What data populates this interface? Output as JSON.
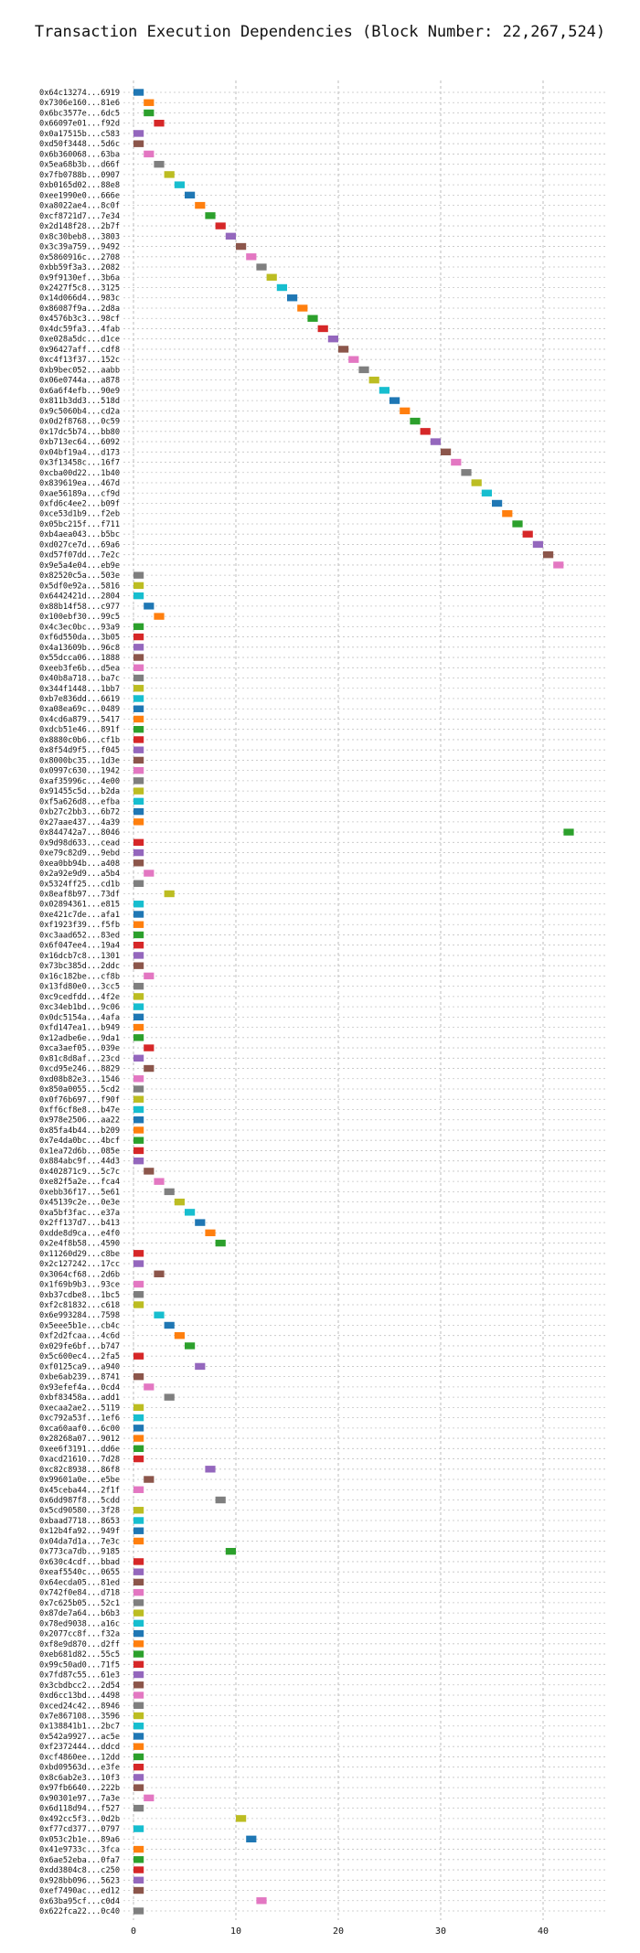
{
  "chart_data": {
    "type": "gantt",
    "title": "Transaction Execution Dependencies (Block Number: 22,267,524)",
    "xlabel": "",
    "ylabel": "",
    "x_ticks": [
      0,
      10,
      20,
      30,
      40
    ],
    "xlim": [
      -1.5,
      45
    ],
    "grid": true,
    "palette": [
      "#1f77b4",
      "#ff7f0e",
      "#2ca02c",
      "#d62728",
      "#9467bd",
      "#8c564b",
      "#e377c2",
      "#7f7f7f",
      "#bcbd22",
      "#17becf"
    ],
    "transactions": [
      {
        "hash": "0x64c13274...6919",
        "start": 0
      },
      {
        "hash": "0x7306e160...81e6",
        "start": 1
      },
      {
        "hash": "0x6bc3577e...6dc5",
        "start": 1
      },
      {
        "hash": "0x66097e01...f92d",
        "start": 2
      },
      {
        "hash": "0x0a17515b...c583",
        "start": 0
      },
      {
        "hash": "0xd50f3448...5d6c",
        "start": 0
      },
      {
        "hash": "0x6b360068...63ba",
        "start": 1
      },
      {
        "hash": "0x5ea68b3b...d66f",
        "start": 2
      },
      {
        "hash": "0x7fb0788b...0907",
        "start": 3
      },
      {
        "hash": "0xb0165d02...88e8",
        "start": 4
      },
      {
        "hash": "0xee1990e0...666e",
        "start": 5
      },
      {
        "hash": "0xa8022ae4...8c0f",
        "start": 6
      },
      {
        "hash": "0xcf8721d7...7e34",
        "start": 7
      },
      {
        "hash": "0x2d148f28...2b7f",
        "start": 8
      },
      {
        "hash": "0x8c30beb8...3803",
        "start": 9
      },
      {
        "hash": "0x3c39a759...9492",
        "start": 10
      },
      {
        "hash": "0x5860916c...2708",
        "start": 11
      },
      {
        "hash": "0xbb59f3a3...2082",
        "start": 12
      },
      {
        "hash": "0x9f9130ef...3b6a",
        "start": 13
      },
      {
        "hash": "0x2427f5c8...3125",
        "start": 14
      },
      {
        "hash": "0x14d066d4...983c",
        "start": 15
      },
      {
        "hash": "0x86087f9a...2d8a",
        "start": 16
      },
      {
        "hash": "0x4576b3c3...98cf",
        "start": 17
      },
      {
        "hash": "0x4dc59fa3...4fab",
        "start": 18
      },
      {
        "hash": "0xe028a5dc...d1ce",
        "start": 19
      },
      {
        "hash": "0x96427aff...cdf8",
        "start": 20
      },
      {
        "hash": "0xc4f13f37...152c",
        "start": 21
      },
      {
        "hash": "0xb9bec052...aabb",
        "start": 22
      },
      {
        "hash": "0x06e0744a...a878",
        "start": 23
      },
      {
        "hash": "0x6a6f4efb...90e9",
        "start": 24
      },
      {
        "hash": "0x811b3dd3...518d",
        "start": 25
      },
      {
        "hash": "0x9c5060b4...cd2a",
        "start": 26
      },
      {
        "hash": "0x0d2f8768...0c59",
        "start": 27
      },
      {
        "hash": "0x17dc5b74...bb80",
        "start": 28
      },
      {
        "hash": "0xb713ec64...6092",
        "start": 29
      },
      {
        "hash": "0x04bf19a4...d173",
        "start": 30
      },
      {
        "hash": "0x3f13458c...16f7",
        "start": 31
      },
      {
        "hash": "0xcba00d22...1b40",
        "start": 32
      },
      {
        "hash": "0x839619ea...467d",
        "start": 33
      },
      {
        "hash": "0xae56189a...cf9d",
        "start": 34
      },
      {
        "hash": "0xfd6c4ee2...b09f",
        "start": 35
      },
      {
        "hash": "0xce53d1b9...f2eb",
        "start": 36
      },
      {
        "hash": "0x05bc215f...f711",
        "start": 37
      },
      {
        "hash": "0xb4aea043...b5bc",
        "start": 38
      },
      {
        "hash": "0xd027ce7d...69a6",
        "start": 39
      },
      {
        "hash": "0xd57f07dd...7e2c",
        "start": 40
      },
      {
        "hash": "0x9e5a4e04...eb9e",
        "start": 41
      },
      {
        "hash": "0x82520c5a...503e",
        "start": 0
      },
      {
        "hash": "0x5df0e92a...5816",
        "start": 0
      },
      {
        "hash": "0x6442421d...2804",
        "start": 0
      },
      {
        "hash": "0x88b14f58...c977",
        "start": 1
      },
      {
        "hash": "0x100ebf30...99c5",
        "start": 2
      },
      {
        "hash": "0x4c3ec0bc...93a9",
        "start": 0
      },
      {
        "hash": "0xf6d550da...3b05",
        "start": 0
      },
      {
        "hash": "0x4a13609b...96c8",
        "start": 0
      },
      {
        "hash": "0x55dcca06...1888",
        "start": 0
      },
      {
        "hash": "0xeeb3fe6b...d5ea",
        "start": 0
      },
      {
        "hash": "0x40b8a718...ba7c",
        "start": 0
      },
      {
        "hash": "0x344f1448...1bb7",
        "start": 0
      },
      {
        "hash": "0xb7e836dd...6619",
        "start": 0
      },
      {
        "hash": "0xa08ea69c...0489",
        "start": 0
      },
      {
        "hash": "0x4cd6a879...5417",
        "start": 0
      },
      {
        "hash": "0xdcb51e46...891f",
        "start": 0
      },
      {
        "hash": "0x8880c0b6...cf1b",
        "start": 0
      },
      {
        "hash": "0x8f54d9f5...f045",
        "start": 0
      },
      {
        "hash": "0x8000bc35...1d3e",
        "start": 0
      },
      {
        "hash": "0x0997c630...1942",
        "start": 0
      },
      {
        "hash": "0xaf35996c...4e00",
        "start": 0
      },
      {
        "hash": "0x91455c5d...b2da",
        "start": 0
      },
      {
        "hash": "0xf5a626d8...efba",
        "start": 0
      },
      {
        "hash": "0xb27c2bb3...6b72",
        "start": 0
      },
      {
        "hash": "0x27aae437...4a39",
        "start": 0
      },
      {
        "hash": "0x844742a7...8046",
        "start": 42
      },
      {
        "hash": "0x9d98d633...cead",
        "start": 0
      },
      {
        "hash": "0xe79c82d9...9ebd",
        "start": 0
      },
      {
        "hash": "0xea0bb94b...a408",
        "start": 0
      },
      {
        "hash": "0x2a92e9d9...a5b4",
        "start": 1
      },
      {
        "hash": "0x5324ff25...cd1b",
        "start": 0
      },
      {
        "hash": "0x8eaf8b97...73df",
        "start": 3
      },
      {
        "hash": "0x02894361...e815",
        "start": 0
      },
      {
        "hash": "0xe421c7de...afa1",
        "start": 0
      },
      {
        "hash": "0xf1923f39...f5fb",
        "start": 0
      },
      {
        "hash": "0xc3aad652...83ed",
        "start": 0
      },
      {
        "hash": "0x6f047ee4...19a4",
        "start": 0
      },
      {
        "hash": "0x16dcb7c8...1301",
        "start": 0
      },
      {
        "hash": "0x73bc385d...2ddc",
        "start": 0
      },
      {
        "hash": "0x16c182be...cf8b",
        "start": 1
      },
      {
        "hash": "0x13fd80e0...3cc5",
        "start": 0
      },
      {
        "hash": "0xc9cedfdd...4f2e",
        "start": 0
      },
      {
        "hash": "0xc34eb1bd...9c06",
        "start": 0
      },
      {
        "hash": "0x0dc5154a...4afa",
        "start": 0
      },
      {
        "hash": "0xfd147ea1...b949",
        "start": 0
      },
      {
        "hash": "0x12adbe6e...9da1",
        "start": 0
      },
      {
        "hash": "0xca3aef05...039e",
        "start": 1
      },
      {
        "hash": "0x81c8d8af...23cd",
        "start": 0
      },
      {
        "hash": "0xcd95e246...8829",
        "start": 1
      },
      {
        "hash": "0xd08b82e3...1546",
        "start": 0
      },
      {
        "hash": "0x850a0055...5cd2",
        "start": 0
      },
      {
        "hash": "0x0f76b697...f90f",
        "start": 0
      },
      {
        "hash": "0xff6cf8e8...b47e",
        "start": 0
      },
      {
        "hash": "0x978e2506...aa22",
        "start": 0
      },
      {
        "hash": "0x85fa4b44...b209",
        "start": 0
      },
      {
        "hash": "0x7e4da0bc...4bcf",
        "start": 0
      },
      {
        "hash": "0x1ea72d6b...085e",
        "start": 0
      },
      {
        "hash": "0x884abc9f...44d3",
        "start": 0
      },
      {
        "hash": "0x402871c9...5c7c",
        "start": 1
      },
      {
        "hash": "0xe82f5a2e...fca4",
        "start": 2
      },
      {
        "hash": "0xebb36f17...5e61",
        "start": 3
      },
      {
        "hash": "0x45139c2e...0e3e",
        "start": 4
      },
      {
        "hash": "0xa5bf3fac...e37a",
        "start": 5
      },
      {
        "hash": "0x2ff137d7...b413",
        "start": 6
      },
      {
        "hash": "0xdde8d9ca...e4f0",
        "start": 7
      },
      {
        "hash": "0x2e4f8b58...4590",
        "start": 8
      },
      {
        "hash": "0x11260d29...c8be",
        "start": 0
      },
      {
        "hash": "0x2c127242...17cc",
        "start": 0
      },
      {
        "hash": "0x3064cf68...2d6b",
        "start": 2
      },
      {
        "hash": "0x1f69b9b3...93ce",
        "start": 0
      },
      {
        "hash": "0xb37cdbe8...1bc5",
        "start": 0
      },
      {
        "hash": "0xf2c81832...c618",
        "start": 0
      },
      {
        "hash": "0x6e993284...7598",
        "start": 2
      },
      {
        "hash": "0x5eee5b1e...cb4c",
        "start": 3
      },
      {
        "hash": "0xf2d2fcaa...4c6d",
        "start": 4
      },
      {
        "hash": "0x029fe6bf...b747",
        "start": 5
      },
      {
        "hash": "0x5c600ec4...2fa5",
        "start": 0
      },
      {
        "hash": "0xf0125ca9...a940",
        "start": 6
      },
      {
        "hash": "0xbe6ab239...8741",
        "start": 0
      },
      {
        "hash": "0x93efef4a...0cd4",
        "start": 1
      },
      {
        "hash": "0xbf83458a...add1",
        "start": 3
      },
      {
        "hash": "0xecaa2ae2...5119",
        "start": 0
      },
      {
        "hash": "0xc792a53f...1ef6",
        "start": 0
      },
      {
        "hash": "0xca60aaf0...6c00",
        "start": 0
      },
      {
        "hash": "0x28268a07...9012",
        "start": 0
      },
      {
        "hash": "0xee6f3191...dd6e",
        "start": 0
      },
      {
        "hash": "0xacd21610...7d28",
        "start": 0
      },
      {
        "hash": "0xc82c8938...86f8",
        "start": 7
      },
      {
        "hash": "0x99601a0e...e5be",
        "start": 1
      },
      {
        "hash": "0x45ceba44...2f1f",
        "start": 0
      },
      {
        "hash": "0x6dd987f8...5cdd",
        "start": 8
      },
      {
        "hash": "0x5cd90580...3f28",
        "start": 0
      },
      {
        "hash": "0xbaad7718...8653",
        "start": 0
      },
      {
        "hash": "0x12b4fa92...949f",
        "start": 0
      },
      {
        "hash": "0x04da7d1a...7e3c",
        "start": 0
      },
      {
        "hash": "0x773ca7db...9185",
        "start": 9
      },
      {
        "hash": "0x630c4cdf...bbad",
        "start": 0
      },
      {
        "hash": "0xeaf5540c...0655",
        "start": 0
      },
      {
        "hash": "0x64ecda05...81ed",
        "start": 0
      },
      {
        "hash": "0x742f0e84...d718",
        "start": 0
      },
      {
        "hash": "0x7c625b05...52c1",
        "start": 0
      },
      {
        "hash": "0x87de7a64...b6b3",
        "start": 0
      },
      {
        "hash": "0x78ed9038...a16c",
        "start": 0
      },
      {
        "hash": "0x2077cc8f...f32a",
        "start": 0
      },
      {
        "hash": "0xf8e9d870...d2ff",
        "start": 0
      },
      {
        "hash": "0xeb681d82...55c5",
        "start": 0
      },
      {
        "hash": "0x99c50ad0...71f5",
        "start": 0
      },
      {
        "hash": "0x7fd87c55...61e3",
        "start": 0
      },
      {
        "hash": "0x3cbdbcc2...2d54",
        "start": 0
      },
      {
        "hash": "0xd6cc13bd...4498",
        "start": 0
      },
      {
        "hash": "0xced24c42...8946",
        "start": 0
      },
      {
        "hash": "0x7e867108...3596",
        "start": 0
      },
      {
        "hash": "0x138841b1...2bc7",
        "start": 0
      },
      {
        "hash": "0x542a9927...ac5e",
        "start": 0
      },
      {
        "hash": "0xf2372444...ddcd",
        "start": 0
      },
      {
        "hash": "0xcf4860ee...12dd",
        "start": 0
      },
      {
        "hash": "0xbd09563d...e3fe",
        "start": 0
      },
      {
        "hash": "0x8c6ab2e3...10f3",
        "start": 0
      },
      {
        "hash": "0x97fb6640...222b",
        "start": 0
      },
      {
        "hash": "0x90301e97...7a3e",
        "start": 1
      },
      {
        "hash": "0x6d118d94...f527",
        "start": 0
      },
      {
        "hash": "0x492cc5f3...0d2b",
        "start": 10
      },
      {
        "hash": "0xf77cd377...0797",
        "start": 0
      },
      {
        "hash": "0x053c2b1e...89a6",
        "start": 11
      },
      {
        "hash": "0x41e9733c...3fca",
        "start": 0
      },
      {
        "hash": "0x6ae52eba...0fa7",
        "start": 0
      },
      {
        "hash": "0xdd3804c8...c250",
        "start": 0
      },
      {
        "hash": "0x928bb096...5623",
        "start": 0
      },
      {
        "hash": "0xef7490ac...ed12",
        "start": 0
      },
      {
        "hash": "0x63ba95cf...c0d4",
        "start": 12
      },
      {
        "hash": "0x622fca22...0c40",
        "start": 0
      }
    ]
  }
}
